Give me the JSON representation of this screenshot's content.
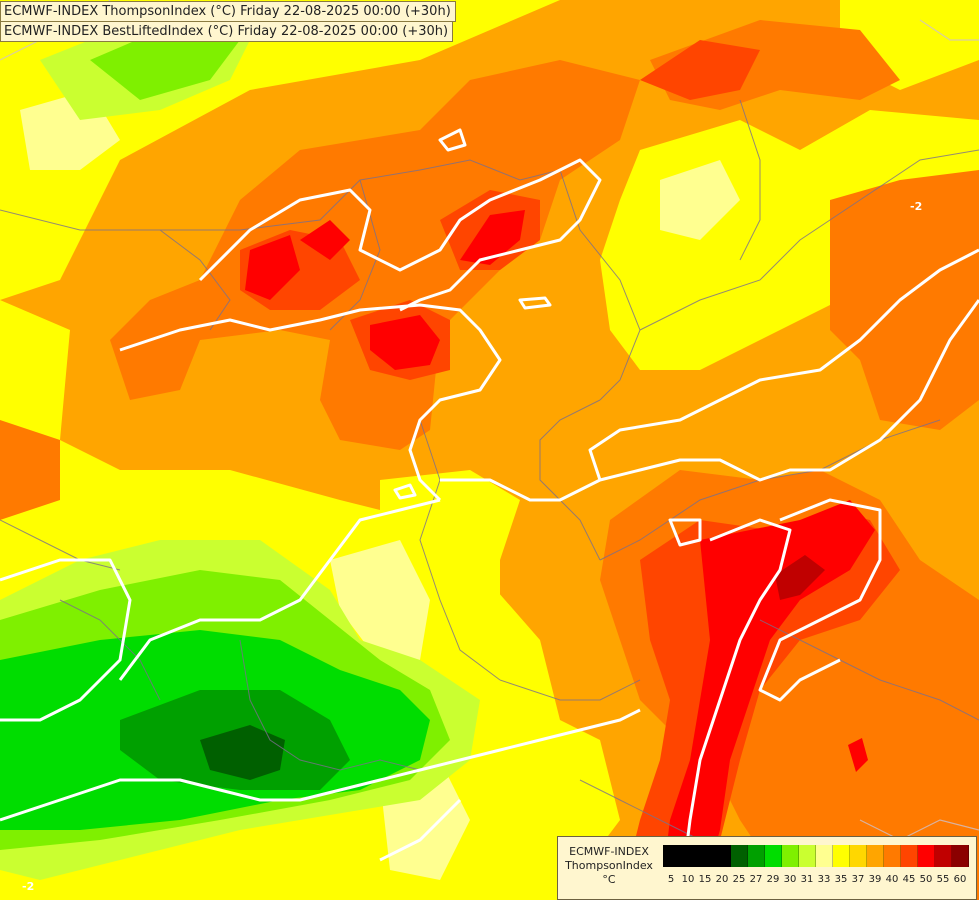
{
  "titles": {
    "line1": "ECMWF-INDEX ThompsonIndex (°C) Friday 22-08-2025 00:00 (+30h)",
    "line2": "ECMWF-INDEX BestLiftedIndex (°C) Friday 22-08-2025 00:00 (+30h)"
  },
  "contour_labels": [
    "-2",
    "-2"
  ],
  "legend": {
    "model": "ECMWF-INDEX",
    "parameter": "ThompsonIndex",
    "unit": "°C",
    "colors": [
      "#000000",
      "#000000",
      "#000000",
      "#000000",
      "#006000",
      "#00a000",
      "#00dd00",
      "#7ff000",
      "#caff30",
      "#ffff90",
      "#ffff00",
      "#ffd700",
      "#ffa500",
      "#ff7a00",
      "#ff4500",
      "#ff0000",
      "#c00000",
      "#8b0000",
      "#ff00ff",
      "#cc00ff",
      "#8a2be2",
      "#6a00ff",
      "#0000ff"
    ],
    "ticks": [
      "5",
      "10",
      "15",
      "20",
      "25",
      "27",
      "29",
      "30",
      "31",
      "33",
      "35",
      "37",
      "39",
      "40",
      "45",
      "50",
      "55",
      "60"
    ]
  }
}
